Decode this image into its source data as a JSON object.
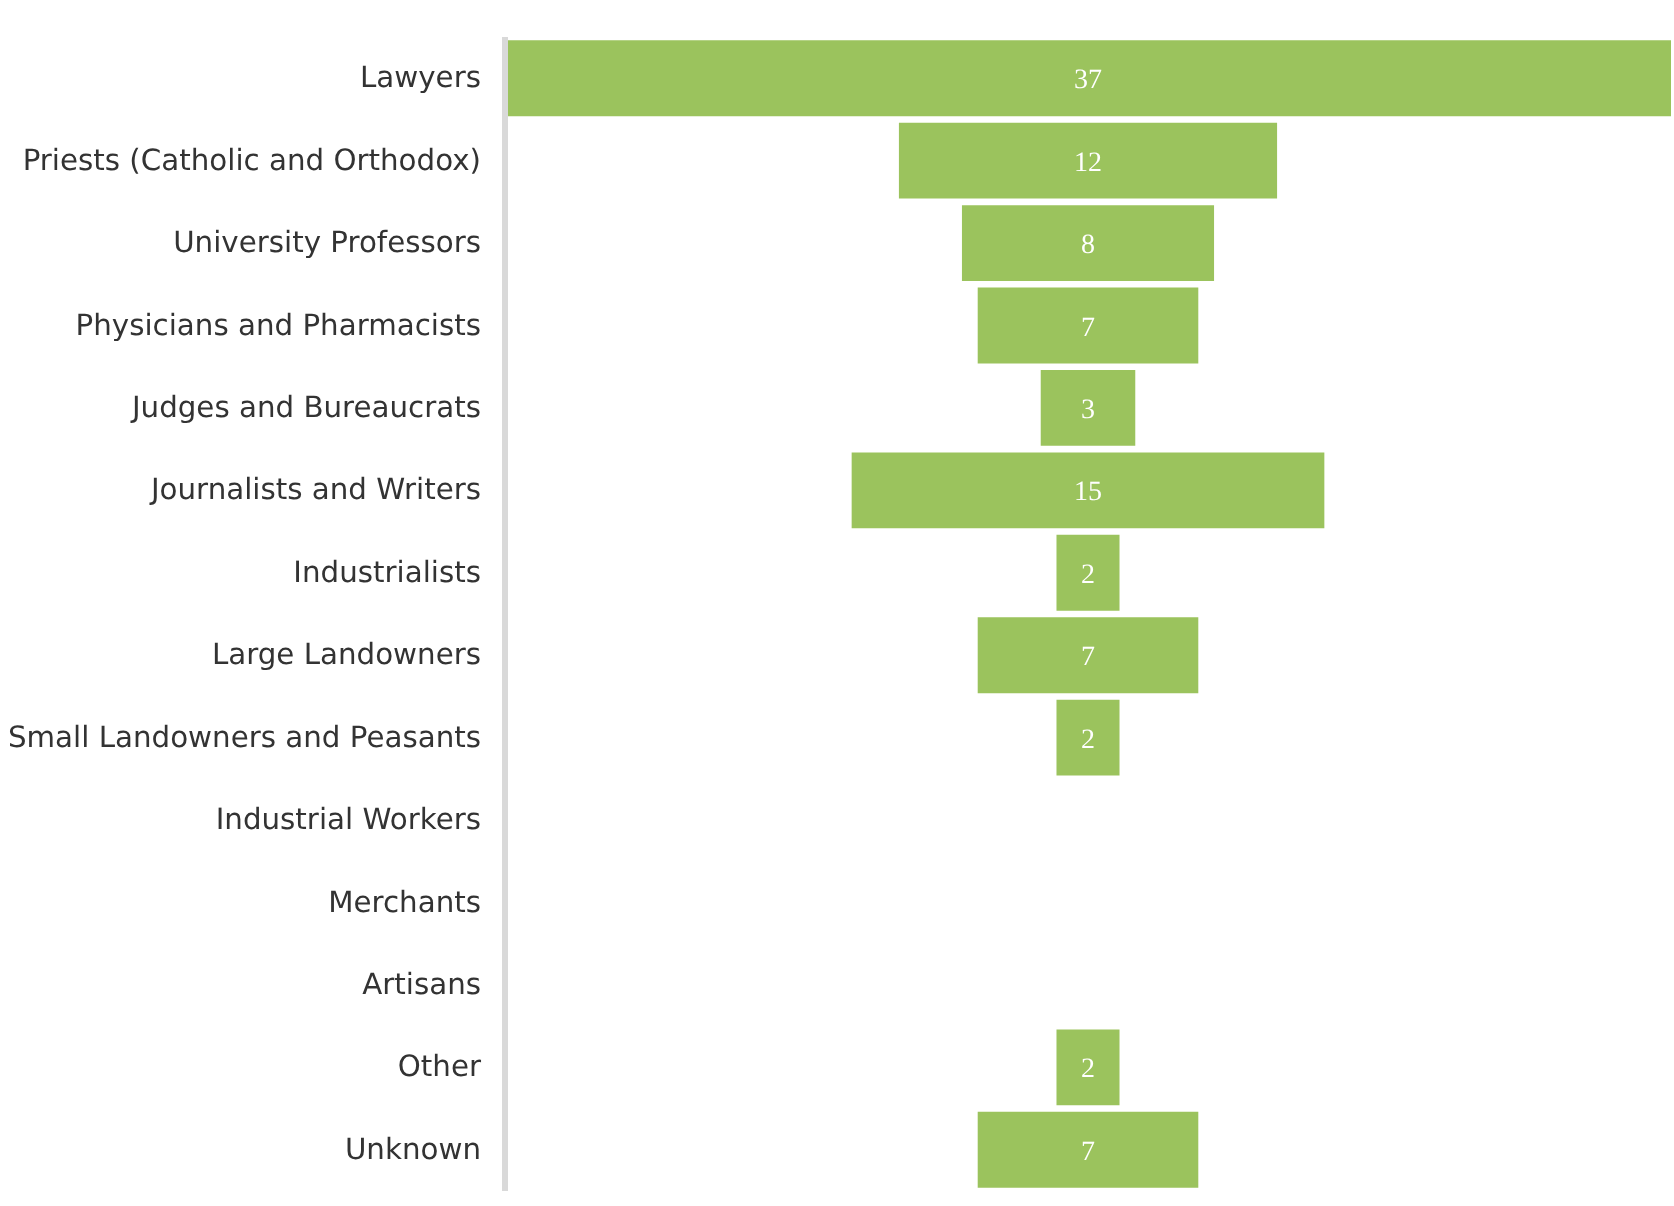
{
  "chart_data": {
    "type": "other",
    "categories": [
      "Lawyers",
      "Priests (Catholic and Orthodox)",
      "University Professors",
      "Physicians and Pharmacists",
      "Judges and Bureaucrats",
      "Journalists and Writers",
      "Industrialists",
      "Large Landowners",
      "Small Landowners and Peasants",
      "Industrial Workers",
      "Merchants",
      "Artisans",
      "Other",
      "Unknown"
    ],
    "values": [
      37,
      12,
      8,
      7,
      3,
      15,
      2,
      7,
      2,
      null,
      null,
      null,
      2,
      7
    ],
    "color": "#9bc35d",
    "data_labels": true
  }
}
